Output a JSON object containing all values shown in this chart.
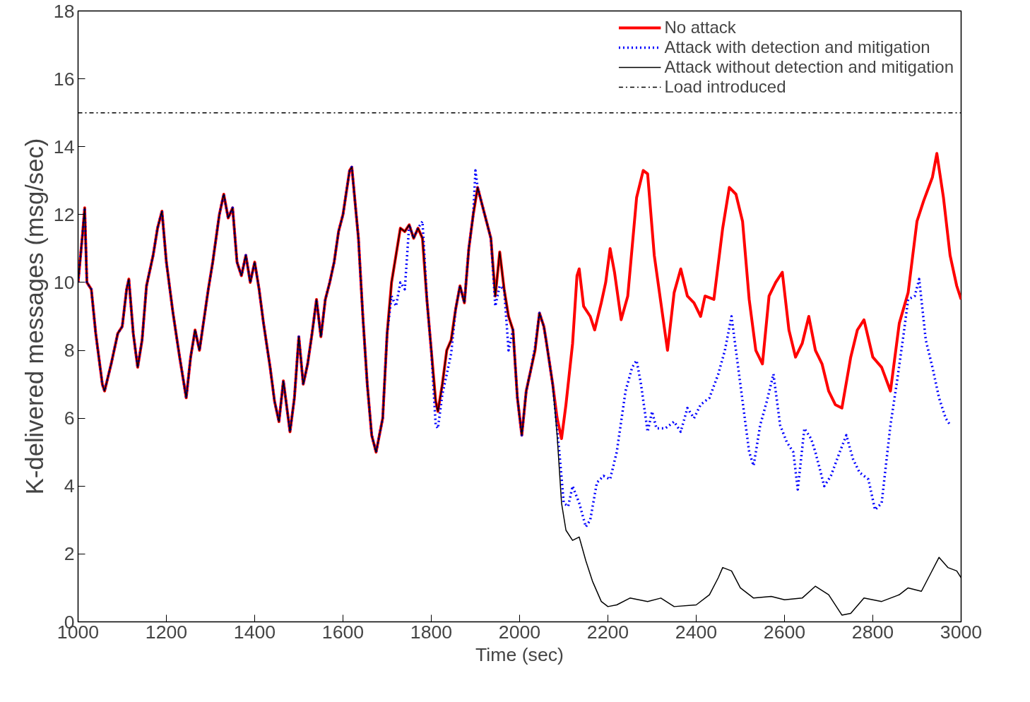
{
  "chart_data": {
    "type": "line",
    "xlabel": "Time (sec)",
    "ylabel": "K-delivered messages (msg/sec)",
    "xlim": [
      1000,
      3000
    ],
    "xticks": [
      1000,
      1200,
      1400,
      1600,
      1800,
      2000,
      2200,
      2400,
      2600,
      2800,
      3000
    ],
    "ylim": [
      0,
      18
    ],
    "yticks": [
      0,
      2,
      4,
      6,
      8,
      10,
      12,
      14,
      16,
      18
    ],
    "grid": false,
    "legend": "top right",
    "series": [
      {
        "name": "No attack",
        "color": "#ff0000",
        "line_style": "solid",
        "x": [
          1000,
          1010,
          1015,
          1020,
          1030,
          1040,
          1055,
          1060,
          1075,
          1090,
          1100,
          1110,
          1115,
          1125,
          1135,
          1145,
          1155,
          1170,
          1180,
          1190,
          1200,
          1215,
          1230,
          1245,
          1255,
          1265,
          1275,
          1285,
          1295,
          1305,
          1320,
          1330,
          1340,
          1350,
          1360,
          1370,
          1380,
          1390,
          1400,
          1410,
          1420,
          1435,
          1445,
          1455,
          1465,
          1480,
          1490,
          1500,
          1510,
          1520,
          1530,
          1540,
          1550,
          1560,
          1570,
          1580,
          1590,
          1600,
          1615,
          1620,
          1635,
          1645,
          1655,
          1665,
          1675,
          1690,
          1700,
          1710,
          1720,
          1730,
          1740,
          1750,
          1760,
          1770,
          1780,
          1790,
          1800,
          1810,
          1815,
          1825,
          1835,
          1845,
          1855,
          1865,
          1875,
          1885,
          1895,
          1905,
          1915,
          1925,
          1935,
          1945,
          1955,
          1965,
          1975,
          1985,
          1995,
          2005,
          2015,
          2025,
          2035,
          2045,
          2055,
          2060,
          2075,
          2085,
          2095,
          2105,
          2120,
          2130,
          2135,
          2145,
          2160,
          2170,
          2185,
          2195,
          2205,
          2215,
          2230,
          2245,
          2265,
          2280,
          2290,
          2305,
          2320,
          2335,
          2350,
          2365,
          2380,
          2395,
          2410,
          2420,
          2440,
          2460,
          2475,
          2490,
          2505,
          2520,
          2535,
          2550,
          2565,
          2580,
          2595,
          2610,
          2625,
          2640,
          2655,
          2670,
          2685,
          2700,
          2715,
          2730,
          2750,
          2765,
          2780,
          2800,
          2820,
          2840,
          2860,
          2880,
          2900,
          2915,
          2935,
          2945,
          2960,
          2975,
          2990,
          3000
        ],
        "values": [
          10.0,
          11.4,
          12.2,
          10.0,
          9.8,
          8.5,
          7.0,
          6.8,
          7.6,
          8.5,
          8.7,
          9.8,
          10.1,
          8.5,
          7.5,
          8.3,
          9.9,
          10.8,
          11.6,
          12.1,
          10.6,
          9.1,
          7.8,
          6.6,
          7.8,
          8.6,
          8.0,
          8.9,
          9.8,
          10.6,
          12.0,
          12.6,
          11.9,
          12.2,
          10.6,
          10.2,
          10.8,
          10.0,
          10.6,
          9.8,
          8.8,
          7.5,
          6.5,
          5.9,
          7.1,
          5.6,
          6.6,
          8.4,
          7.0,
          7.6,
          8.5,
          9.5,
          8.4,
          9.5,
          10.0,
          10.6,
          11.5,
          12.0,
          13.3,
          13.4,
          11.3,
          9.0,
          7.0,
          5.5,
          5.0,
          6.0,
          8.5,
          10.0,
          10.8,
          11.6,
          11.5,
          11.7,
          11.3,
          11.6,
          11.3,
          9.5,
          8.0,
          6.5,
          6.2,
          7.0,
          8.0,
          8.3,
          9.2,
          9.9,
          9.4,
          11.0,
          12.0,
          12.8,
          12.3,
          11.8,
          11.3,
          9.6,
          10.9,
          9.8,
          9.0,
          8.6,
          6.6,
          5.5,
          6.8,
          7.4,
          8.0,
          9.1,
          8.7,
          8.3,
          7.0,
          6.0,
          5.4,
          6.4,
          8.2,
          10.2,
          10.4,
          9.3,
          9.0,
          8.6,
          9.4,
          10.0,
          11.0,
          10.3,
          8.9,
          9.6,
          12.5,
          13.3,
          13.2,
          10.8,
          9.4,
          8.0,
          9.7,
          10.4,
          9.6,
          9.4,
          9.0,
          9.6,
          9.5,
          11.6,
          12.8,
          12.6,
          11.8,
          9.5,
          8.0,
          7.6,
          9.6,
          10.0,
          10.3,
          8.6,
          7.8,
          8.2,
          9.0,
          8.0,
          7.6,
          6.8,
          6.4,
          6.3,
          7.8,
          8.6,
          8.9,
          7.8,
          7.5,
          6.8,
          8.8,
          9.7,
          11.8,
          12.4,
          13.1,
          13.8,
          12.5,
          10.8,
          9.9,
          9.5
        ]
      },
      {
        "name": "Attack with detection and mitigation",
        "color": "#0000ff",
        "line_style": "dotted",
        "x": [
          1000,
          1010,
          1015,
          1020,
          1030,
          1040,
          1055,
          1060,
          1075,
          1090,
          1100,
          1110,
          1115,
          1125,
          1135,
          1145,
          1155,
          1170,
          1180,
          1190,
          1200,
          1215,
          1230,
          1245,
          1255,
          1265,
          1275,
          1285,
          1295,
          1305,
          1320,
          1330,
          1340,
          1350,
          1360,
          1370,
          1380,
          1390,
          1400,
          1410,
          1420,
          1435,
          1445,
          1455,
          1465,
          1480,
          1490,
          1500,
          1510,
          1520,
          1530,
          1540,
          1550,
          1560,
          1570,
          1580,
          1590,
          1600,
          1615,
          1620,
          1635,
          1645,
          1655,
          1665,
          1675,
          1690,
          1700,
          1710,
          1720,
          1730,
          1740,
          1750,
          1760,
          1770,
          1780,
          1790,
          1800,
          1810,
          1815,
          1825,
          1835,
          1845,
          1855,
          1865,
          1875,
          1885,
          1895,
          1900,
          1905,
          1915,
          1925,
          1935,
          1945,
          1955,
          1965,
          1975,
          1985,
          1995,
          2005,
          2015,
          2025,
          2035,
          2045,
          2055,
          2060,
          2075,
          2090,
          2100,
          2110,
          2120,
          2135,
          2150,
          2160,
          2175,
          2190,
          2205,
          2220,
          2240,
          2255,
          2265,
          2275,
          2290,
          2300,
          2310,
          2330,
          2350,
          2365,
          2380,
          2395,
          2410,
          2430,
          2450,
          2465,
          2480,
          2495,
          2510,
          2520,
          2530,
          2545,
          2560,
          2575,
          2590,
          2605,
          2620,
          2630,
          2645,
          2660,
          2670,
          2690,
          2705,
          2725,
          2740,
          2755,
          2770,
          2790,
          2805,
          2820,
          2840,
          2855,
          2870,
          2880,
          2895,
          2905,
          2920,
          2935,
          2950,
          2965,
          2975
        ],
        "values": [
          10.0,
          11.4,
          12.2,
          10.0,
          9.8,
          8.5,
          7.0,
          6.8,
          7.6,
          8.5,
          8.7,
          9.8,
          10.1,
          8.5,
          7.5,
          8.3,
          9.9,
          10.8,
          11.6,
          12.1,
          10.6,
          9.1,
          7.8,
          6.6,
          7.8,
          8.6,
          8.0,
          8.9,
          9.8,
          10.6,
          12.0,
          12.6,
          11.9,
          12.2,
          10.6,
          10.2,
          10.8,
          10.0,
          10.6,
          9.8,
          8.8,
          7.5,
          6.5,
          5.9,
          7.1,
          5.6,
          6.6,
          8.4,
          7.0,
          7.6,
          8.5,
          9.5,
          8.4,
          9.5,
          10.0,
          10.6,
          11.5,
          12.0,
          13.3,
          13.4,
          11.3,
          9.0,
          7.0,
          5.5,
          5.0,
          6.0,
          8.5,
          9.6,
          9.3,
          10.0,
          9.8,
          11.7,
          11.3,
          11.6,
          11.8,
          9.5,
          8.0,
          5.8,
          5.7,
          6.7,
          7.3,
          7.9,
          9.2,
          9.9,
          9.4,
          11.0,
          12.0,
          13.3,
          12.8,
          12.3,
          11.8,
          11.3,
          9.3,
          9.9,
          9.8,
          8.0,
          8.6,
          6.6,
          5.5,
          6.8,
          7.4,
          8.1,
          9.1,
          8.7,
          8.3,
          7.0,
          5.0,
          3.5,
          3.4,
          4.0,
          3.5,
          2.8,
          3.0,
          4.1,
          4.3,
          4.2,
          5.0,
          6.8,
          7.5,
          7.7,
          7.0,
          5.6,
          6.2,
          5.7,
          5.7,
          5.9,
          5.6,
          6.3,
          6.0,
          6.4,
          6.6,
          7.3,
          8.0,
          9.0,
          7.5,
          6.0,
          5.0,
          4.6,
          5.8,
          6.5,
          7.3,
          5.8,
          5.3,
          5.0,
          3.9,
          5.7,
          5.4,
          5.0,
          4.0,
          4.3,
          5.0,
          5.5,
          4.8,
          4.4,
          4.2,
          3.3,
          3.5,
          5.8,
          7.1,
          8.5,
          9.5,
          9.6,
          10.1,
          8.3,
          7.5,
          6.6,
          6.0,
          5.8
        ]
      },
      {
        "name": "Attack without detection and mitigation",
        "color": "#000000",
        "line_style": "solid",
        "x": [
          1000,
          1010,
          1015,
          1020,
          1030,
          1040,
          1055,
          1060,
          1075,
          1090,
          1100,
          1110,
          1115,
          1125,
          1135,
          1145,
          1155,
          1170,
          1180,
          1190,
          1200,
          1215,
          1230,
          1245,
          1255,
          1265,
          1275,
          1285,
          1295,
          1305,
          1320,
          1330,
          1340,
          1350,
          1360,
          1370,
          1380,
          1390,
          1400,
          1410,
          1420,
          1435,
          1445,
          1455,
          1465,
          1480,
          1490,
          1500,
          1510,
          1520,
          1530,
          1540,
          1550,
          1560,
          1570,
          1580,
          1590,
          1600,
          1615,
          1620,
          1635,
          1645,
          1655,
          1665,
          1675,
          1690,
          1700,
          1710,
          1720,
          1730,
          1740,
          1750,
          1760,
          1770,
          1780,
          1790,
          1800,
          1810,
          1815,
          1825,
          1835,
          1845,
          1855,
          1865,
          1875,
          1885,
          1895,
          1905,
          1915,
          1925,
          1935,
          1945,
          1955,
          1965,
          1975,
          1985,
          1995,
          2005,
          2015,
          2025,
          2035,
          2045,
          2055,
          2060,
          2075,
          2085,
          2095,
          2105,
          2120,
          2135,
          2150,
          2165,
          2185,
          2200,
          2220,
          2250,
          2290,
          2320,
          2350,
          2400,
          2430,
          2450,
          2460,
          2480,
          2500,
          2530,
          2570,
          2600,
          2640,
          2670,
          2700,
          2730,
          2750,
          2780,
          2820,
          2860,
          2880,
          2910,
          2930,
          2950,
          2970,
          2990,
          3000
        ],
        "values": [
          10.0,
          11.4,
          12.2,
          10.0,
          9.8,
          8.5,
          7.0,
          6.8,
          7.6,
          8.5,
          8.7,
          9.8,
          10.1,
          8.5,
          7.5,
          8.3,
          9.9,
          10.8,
          11.6,
          12.1,
          10.6,
          9.1,
          7.8,
          6.6,
          7.8,
          8.6,
          8.0,
          8.9,
          9.8,
          10.6,
          12.0,
          12.6,
          11.9,
          12.2,
          10.6,
          10.2,
          10.8,
          10.0,
          10.6,
          9.8,
          8.8,
          7.5,
          6.5,
          5.9,
          7.1,
          5.6,
          6.6,
          8.4,
          7.0,
          7.6,
          8.5,
          9.5,
          8.4,
          9.5,
          10.0,
          10.6,
          11.5,
          12.0,
          13.3,
          13.4,
          11.3,
          9.0,
          7.0,
          5.5,
          5.0,
          6.0,
          8.5,
          10.0,
          10.8,
          11.6,
          11.5,
          11.7,
          11.3,
          11.6,
          11.3,
          9.5,
          8.0,
          6.5,
          6.2,
          7.0,
          8.0,
          8.3,
          9.2,
          9.9,
          9.4,
          11.0,
          12.0,
          12.8,
          12.3,
          11.8,
          11.3,
          9.6,
          10.9,
          9.8,
          9.0,
          8.6,
          6.6,
          5.5,
          6.8,
          7.4,
          8.0,
          9.1,
          8.7,
          8.3,
          7.0,
          5.5,
          3.5,
          2.7,
          2.4,
          2.5,
          1.8,
          1.2,
          0.6,
          0.45,
          0.5,
          0.7,
          0.6,
          0.7,
          0.45,
          0.5,
          0.8,
          1.3,
          1.6,
          1.5,
          1.0,
          0.7,
          0.75,
          0.65,
          0.7,
          1.05,
          0.8,
          0.2,
          0.25,
          0.7,
          0.6,
          0.8,
          1.0,
          0.9,
          1.4,
          1.9,
          1.6,
          1.5,
          1.3
        ]
      }
    ],
    "ref_lines": [
      {
        "axis": "y",
        "value": 15,
        "label": "Load introduced",
        "color": "#000000",
        "line_style": "dashdot"
      }
    ]
  }
}
